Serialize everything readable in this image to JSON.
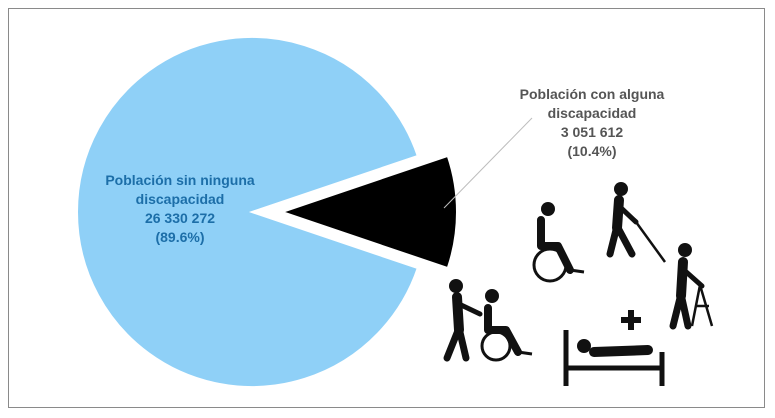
{
  "chart_data": {
    "type": "pie",
    "slices": [
      {
        "label_lines": [
          "Población sin ninguna",
          "discapacidad"
        ],
        "value": 26330272,
        "value_text": "26 330 272",
        "percent": 89.6,
        "percent_text": "(89.6%)",
        "color": "#8fd0f7",
        "label_color": "#1c6ea8"
      },
      {
        "label_lines": [
          "Población con alguna",
          "discapacidad"
        ],
        "value": 3051612,
        "value_text": "3 051 612",
        "percent": 10.4,
        "percent_text": "(10.4%)",
        "color": "#000000",
        "label_color": "#555555"
      }
    ]
  },
  "icons": [
    "wheelchair-user-icon",
    "blind-person-with-cane-icon",
    "person-pushing-wheelchair-icon",
    "elderly-person-with-walker-icon",
    "person-in-bed-icon",
    "medical-cross-icon"
  ]
}
